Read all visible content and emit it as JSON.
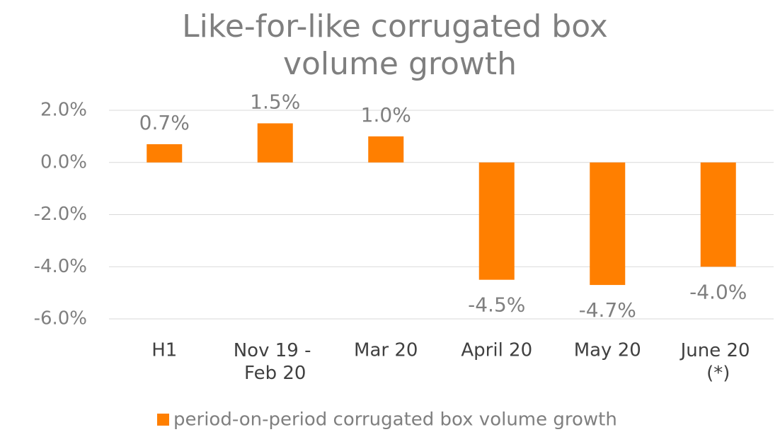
{
  "chart_data": {
    "type": "bar",
    "title": "Like-for-like corrugated box volume growth",
    "categories": [
      "H1",
      "Nov 19 - Feb 20",
      "Mar 20",
      "April 20",
      "May 20",
      "June 20 (*)"
    ],
    "series": [
      {
        "name": "period-on-period corrugated box volume growth",
        "color": "#ff7f00",
        "values": [
          0.7,
          1.5,
          1.0,
          -4.5,
          -4.7,
          -4.0
        ],
        "value_labels": [
          "0.7%",
          "1.5%",
          "1.0%",
          "-4.5%",
          "-4.7%",
          "-4.0%"
        ]
      }
    ],
    "ylim": [
      -6,
      2
    ],
    "yticks": [
      {
        "value": -6,
        "label": "-6.0%"
      },
      {
        "value": -4,
        "label": "-4.0%"
      },
      {
        "value": -2,
        "label": "-2.0%"
      },
      {
        "value": 0,
        "label": "0.0%"
      },
      {
        "value": 2,
        "label": "2.0%"
      }
    ],
    "grid": true,
    "legend": "bottom"
  }
}
